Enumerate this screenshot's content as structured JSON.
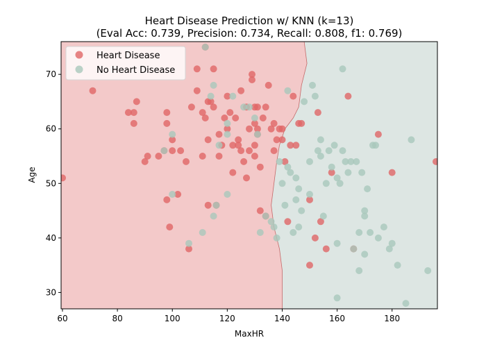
{
  "chart_data": {
    "type": "scatter",
    "title": "Heart Disease Prediction w/ KNN (k=13)",
    "subtitle": "(Eval Acc: 0.739, Precision: 0.734, Recall: 0.808, f1: 0.769)",
    "xlabel": "MaxHR",
    "ylabel": "Age",
    "xlim": [
      59.5,
      196.5
    ],
    "ylim": [
      27,
      76
    ],
    "xticks": [
      60,
      80,
      100,
      120,
      140,
      160,
      180
    ],
    "yticks": [
      30,
      40,
      50,
      60,
      70
    ],
    "grid": false,
    "legend_position": "top-left",
    "series": [
      {
        "name": "Heart Disease",
        "color": "#e06666",
        "points": [
          [
            60,
            51
          ],
          [
            71,
            67
          ],
          [
            84,
            63
          ],
          [
            86,
            63
          ],
          [
            86,
            61
          ],
          [
            87,
            65
          ],
          [
            90,
            54
          ],
          [
            91,
            55
          ],
          [
            95,
            55
          ],
          [
            97,
            56
          ],
          [
            98,
            63
          ],
          [
            98,
            61
          ],
          [
            98,
            47
          ],
          [
            99,
            42
          ],
          [
            100,
            56
          ],
          [
            100,
            58
          ],
          [
            102,
            48
          ],
          [
            103,
            56
          ],
          [
            105,
            54
          ],
          [
            106,
            38
          ],
          [
            107,
            64
          ],
          [
            109,
            67
          ],
          [
            109,
            71
          ],
          [
            111,
            63
          ],
          [
            111,
            55
          ],
          [
            112,
            75
          ],
          [
            112,
            62
          ],
          [
            113,
            58
          ],
          [
            113,
            65
          ],
          [
            113,
            46
          ],
          [
            114,
            65
          ],
          [
            115,
            71
          ],
          [
            115,
            64
          ],
          [
            116,
            46
          ],
          [
            117,
            59
          ],
          [
            117,
            55
          ],
          [
            118,
            57
          ],
          [
            119,
            62
          ],
          [
            120,
            66
          ],
          [
            120,
            60
          ],
          [
            121,
            63
          ],
          [
            122,
            57
          ],
          [
            122,
            52
          ],
          [
            123,
            62
          ],
          [
            124,
            58
          ],
          [
            124,
            57
          ],
          [
            125,
            56
          ],
          [
            125,
            67
          ],
          [
            126,
            54
          ],
          [
            127,
            51
          ],
          [
            127,
            64
          ],
          [
            128,
            60
          ],
          [
            128,
            56
          ],
          [
            129,
            70
          ],
          [
            129,
            69
          ],
          [
            130,
            55
          ],
          [
            130,
            64
          ],
          [
            130,
            61
          ],
          [
            130,
            57
          ],
          [
            131,
            60
          ],
          [
            131,
            64
          ],
          [
            131,
            59
          ],
          [
            132,
            45
          ],
          [
            132,
            53
          ],
          [
            133,
            62
          ],
          [
            134,
            44
          ],
          [
            134,
            64
          ],
          [
            135,
            68
          ],
          [
            136,
            60
          ],
          [
            137,
            56
          ],
          [
            137,
            61
          ],
          [
            138,
            58
          ],
          [
            139,
            60
          ],
          [
            140,
            58
          ],
          [
            140,
            60
          ],
          [
            141,
            54
          ],
          [
            142,
            43
          ],
          [
            143,
            57
          ],
          [
            144,
            66
          ],
          [
            145,
            57
          ],
          [
            146,
            61
          ],
          [
            147,
            61
          ],
          [
            150,
            35
          ],
          [
            150,
            47
          ],
          [
            152,
            40
          ],
          [
            153,
            63
          ],
          [
            154,
            43
          ],
          [
            156,
            38
          ],
          [
            158,
            52
          ],
          [
            164,
            66
          ],
          [
            166,
            38
          ],
          [
            175,
            59
          ],
          [
            180,
            52
          ],
          [
            196,
            54
          ]
        ]
      },
      {
        "name": "No Heart Disease",
        "color": "#a9c8bb",
        "points": [
          [
            97,
            56
          ],
          [
            100,
            59
          ],
          [
            100,
            48
          ],
          [
            106,
            39
          ],
          [
            111,
            41
          ],
          [
            112,
            75
          ],
          [
            114,
            66
          ],
          [
            115,
            68
          ],
          [
            115,
            44
          ],
          [
            116,
            46
          ],
          [
            117,
            57
          ],
          [
            120,
            61
          ],
          [
            120,
            59
          ],
          [
            120,
            48
          ],
          [
            122,
            66
          ],
          [
            126,
            64
          ],
          [
            128,
            64
          ],
          [
            130,
            62
          ],
          [
            131,
            59
          ],
          [
            132,
            41
          ],
          [
            134,
            44
          ],
          [
            136,
            43
          ],
          [
            137,
            42
          ],
          [
            138,
            40
          ],
          [
            139,
            54
          ],
          [
            140,
            50
          ],
          [
            141,
            46
          ],
          [
            142,
            67
          ],
          [
            142,
            53
          ],
          [
            143,
            52
          ],
          [
            144,
            41
          ],
          [
            145,
            47
          ],
          [
            145,
            51
          ],
          [
            146,
            49
          ],
          [
            146,
            42
          ],
          [
            147,
            45
          ],
          [
            148,
            65
          ],
          [
            150,
            54
          ],
          [
            150,
            48
          ],
          [
            151,
            68
          ],
          [
            152,
            66
          ],
          [
            153,
            56
          ],
          [
            154,
            58
          ],
          [
            154,
            55
          ],
          [
            155,
            44
          ],
          [
            156,
            50
          ],
          [
            157,
            56
          ],
          [
            158,
            53
          ],
          [
            159,
            57
          ],
          [
            160,
            51
          ],
          [
            160,
            39
          ],
          [
            160,
            29
          ],
          [
            161,
            50
          ],
          [
            162,
            71
          ],
          [
            162,
            56
          ],
          [
            163,
            54
          ],
          [
            164,
            52
          ],
          [
            165,
            54
          ],
          [
            166,
            38
          ],
          [
            167,
            54
          ],
          [
            168,
            34
          ],
          [
            168,
            41
          ],
          [
            169,
            52
          ],
          [
            170,
            45
          ],
          [
            170,
            44
          ],
          [
            170,
            37
          ],
          [
            171,
            49
          ],
          [
            172,
            41
          ],
          [
            173,
            57
          ],
          [
            174,
            57
          ],
          [
            175,
            40
          ],
          [
            177,
            42
          ],
          [
            179,
            38
          ],
          [
            180,
            39
          ],
          [
            182,
            35
          ],
          [
            185,
            28
          ],
          [
            187,
            58
          ],
          [
            193,
            34
          ]
        ]
      }
    ],
    "decision_regions": {
      "description_free": true,
      "colors": {
        "heart_disease": "#f3c9c9",
        "no_heart_disease": "#dde6e3"
      },
      "boundary_color": "#c46a6a"
    }
  }
}
